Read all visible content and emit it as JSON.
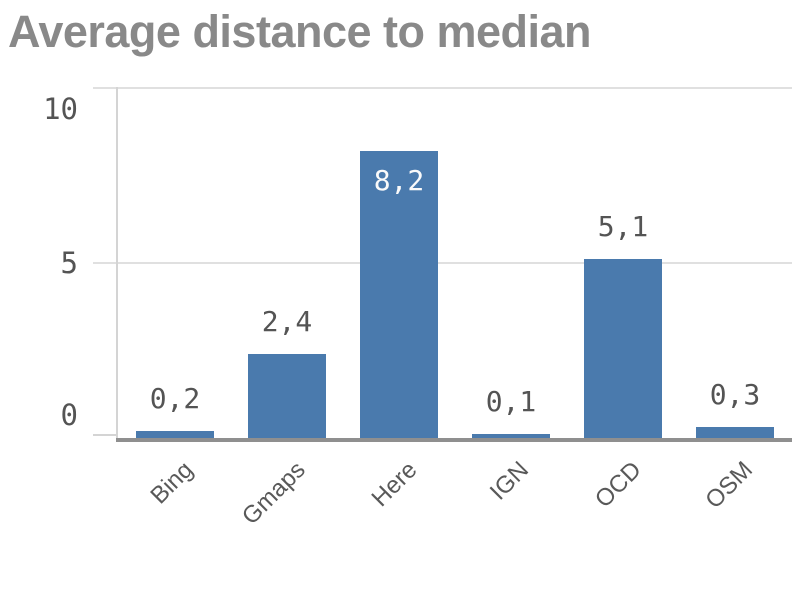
{
  "page": {
    "background": "#ffffff"
  },
  "chart_data": {
    "type": "bar",
    "title": "Average distance to median",
    "categories": [
      "Bing",
      "Gmaps",
      "Here",
      "IGN",
      "OCD",
      "OSM"
    ],
    "values": [
      0.2,
      2.4,
      8.2,
      0.1,
      5.1,
      0.3
    ],
    "value_labels": [
      "0,2",
      "2,4",
      "8,2",
      "0,1",
      "5,1",
      "0,3"
    ],
    "decimal_separator": ",",
    "xlabel": "",
    "ylabel": "",
    "ylim": [
      0,
      10
    ],
    "y_ticks": [
      0,
      5,
      10
    ],
    "y_tick_labels": [
      "0",
      "5",
      "10"
    ],
    "grid": true,
    "legend": false,
    "category_label_rotation_deg": -45,
    "colors": {
      "bar": "#4a7aad",
      "title": "#898989",
      "axis_text": "#545454",
      "category_text": "#595959",
      "value_label": "#545454",
      "value_label_inside": "#fafafa",
      "gridline": "#e0e0e0",
      "axis_line": "#d4d4d4",
      "baseline": "#8f8f8f"
    }
  }
}
